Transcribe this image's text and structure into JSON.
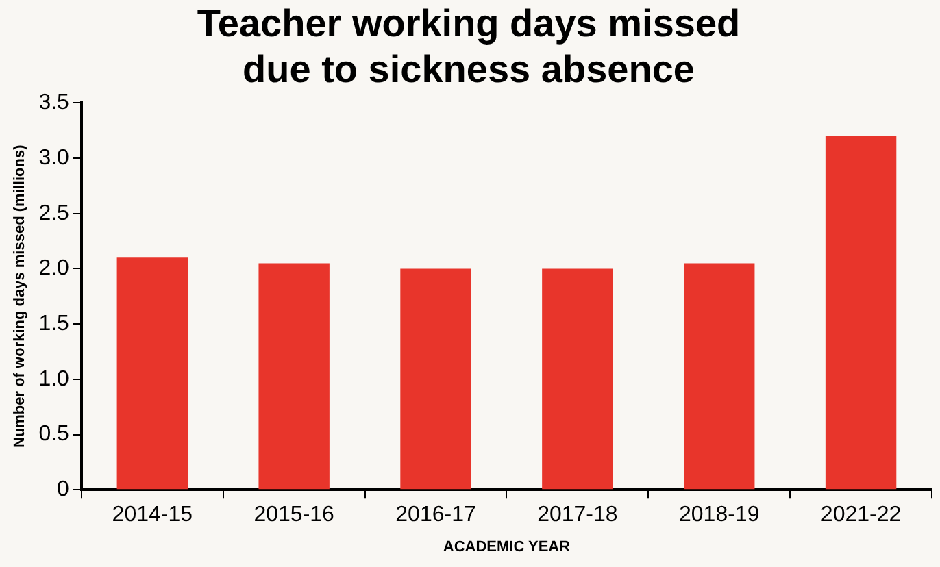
{
  "chart_data": {
    "type": "bar",
    "title": "Teacher working days missed due to sickness absence",
    "xlabel": "ACADEMIC YEAR",
    "ylabel": "Number of working days missed (millions)",
    "categories": [
      "2014-15",
      "2015-16",
      "2016-17",
      "2017-18",
      "2018-19",
      "2021-22"
    ],
    "values": [
      2.1,
      2.05,
      2.0,
      2.0,
      2.05,
      3.2
    ],
    "color": "#e8352b",
    "ylim": [
      0,
      3.5
    ],
    "yticks": [
      {
        "value": 0,
        "label": "0"
      },
      {
        "value": 0.5,
        "label": "0.5"
      },
      {
        "value": 1,
        "label": "1.0"
      },
      {
        "value": 1.5,
        "label": "1.5"
      },
      {
        "value": 2,
        "label": "2.0"
      },
      {
        "value": 2.5,
        "label": "2.5"
      },
      {
        "value": 3,
        "label": "3.0"
      },
      {
        "value": 3.5,
        "label": "3.5"
      }
    ],
    "grid": false,
    "legend": false
  }
}
